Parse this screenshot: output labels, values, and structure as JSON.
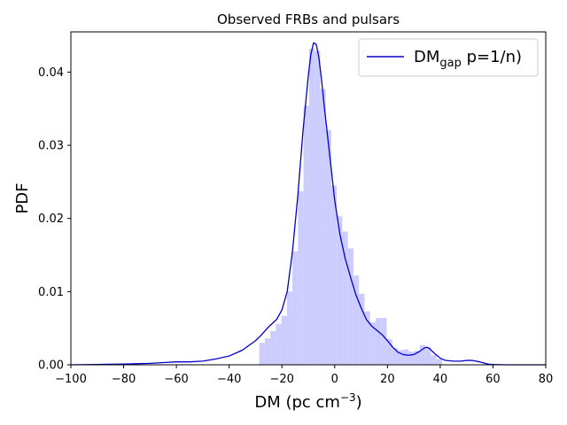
{
  "chart_data": {
    "type": "area",
    "title": "Observed FRBs and pulsars",
    "xlabel": "DM (pc cm",
    "xlabel_sup": "−3",
    "xlabel_close": ")",
    "ylabel": "PDF",
    "xlim": [
      -100,
      80
    ],
    "ylim": [
      0,
      0.0455
    ],
    "xticks": [
      -100,
      -80,
      -60,
      -40,
      -20,
      0,
      20,
      40,
      60,
      80
    ],
    "xtick_labels": [
      "−100",
      "−80",
      "−60",
      "−40",
      "−20",
      "0",
      "20",
      "40",
      "60",
      "80"
    ],
    "yticks": [
      0,
      0.01,
      0.02,
      0.03,
      0.04
    ],
    "ytick_labels": [
      "0.00",
      "0.01",
      "0.02",
      "0.03",
      "0.04"
    ],
    "grid": false,
    "legend_position": "top-right",
    "legend": {
      "main": "DM",
      "sub": "gap",
      "rest": " p=1/n)"
    },
    "colors": {
      "line": "#0000cc",
      "hist": "#ccccff"
    },
    "histogram": {
      "bin_width": 2.1,
      "bins": [
        {
          "x0": -28.6,
          "h": 0.003
        },
        {
          "x0": -26.5,
          "h": 0.0036
        },
        {
          "x0": -24.4,
          "h": 0.0046
        },
        {
          "x0": -22.3,
          "h": 0.0056
        },
        {
          "x0": -20.2,
          "h": 0.0067
        },
        {
          "x0": -18.1,
          "h": 0.01
        },
        {
          "x0": -16.0,
          "h": 0.0155
        },
        {
          "x0": -13.9,
          "h": 0.0237
        },
        {
          "x0": -11.8,
          "h": 0.0354
        },
        {
          "x0": -9.7,
          "h": 0.0432
        },
        {
          "x0": -7.6,
          "h": 0.0429
        },
        {
          "x0": -5.5,
          "h": 0.0377
        },
        {
          "x0": -3.4,
          "h": 0.0321
        },
        {
          "x0": -1.3,
          "h": 0.0245
        },
        {
          "x0": 0.8,
          "h": 0.0203
        },
        {
          "x0": 2.9,
          "h": 0.0182
        },
        {
          "x0": 5.0,
          "h": 0.0159
        },
        {
          "x0": 7.1,
          "h": 0.0122
        },
        {
          "x0": 9.2,
          "h": 0.0097
        },
        {
          "x0": 11.3,
          "h": 0.0073
        },
        {
          "x0": 13.4,
          "h": 0.0058
        },
        {
          "x0": 15.5,
          "h": 0.0064
        },
        {
          "x0": 17.6,
          "h": 0.0064
        },
        {
          "x0": 19.7,
          "h": 0.0035
        },
        {
          "x0": 21.8,
          "h": 0.0023
        },
        {
          "x0": 23.9,
          "h": 0.002
        },
        {
          "x0": 26.0,
          "h": 0.0021
        },
        {
          "x0": 28.1,
          "h": 0.0018
        },
        {
          "x0": 30.2,
          "h": 0.0019
        },
        {
          "x0": 32.3,
          "h": 0.0027
        },
        {
          "x0": 34.4,
          "h": 0.0024
        },
        {
          "x0": 36.5,
          "h": 0.0013
        },
        {
          "x0": 38.6,
          "h": 0.0008
        }
      ]
    },
    "series": [
      {
        "name": "DM_gap p=1/n)",
        "x": [
          -100,
          -90,
          -80,
          -70,
          -65,
          -60,
          -55,
          -50,
          -45,
          -40,
          -35,
          -30,
          -28,
          -25,
          -22,
          -20,
          -18,
          -16,
          -14,
          -12,
          -10,
          -9,
          -8,
          -7,
          -6,
          -5,
          -4,
          -2,
          0,
          2,
          4,
          6,
          8,
          10,
          12,
          14,
          16,
          18,
          20,
          22,
          24,
          26,
          28,
          30,
          32,
          34,
          35,
          36,
          38,
          40,
          42,
          45,
          48,
          50,
          52,
          55,
          58,
          60,
          65,
          70,
          80
        ],
        "y": [
          0.0,
          5e-05,
          0.0001,
          0.0002,
          0.0003,
          0.0004,
          0.0004,
          0.0005,
          0.0008,
          0.0012,
          0.002,
          0.0033,
          0.004,
          0.0052,
          0.0062,
          0.0075,
          0.01,
          0.0155,
          0.023,
          0.032,
          0.0395,
          0.0425,
          0.044,
          0.0438,
          0.042,
          0.039,
          0.0355,
          0.029,
          0.0225,
          0.0178,
          0.0145,
          0.012,
          0.0096,
          0.0078,
          0.0062,
          0.0053,
          0.0047,
          0.0041,
          0.0033,
          0.0024,
          0.0017,
          0.0014,
          0.0013,
          0.0014,
          0.0018,
          0.0023,
          0.0024,
          0.0022,
          0.0015,
          0.0009,
          0.0006,
          0.0005,
          0.0005,
          0.0006,
          0.0006,
          0.0004,
          0.0001,
          5e-05,
          0.0,
          0.0,
          0.0
        ]
      }
    ]
  }
}
